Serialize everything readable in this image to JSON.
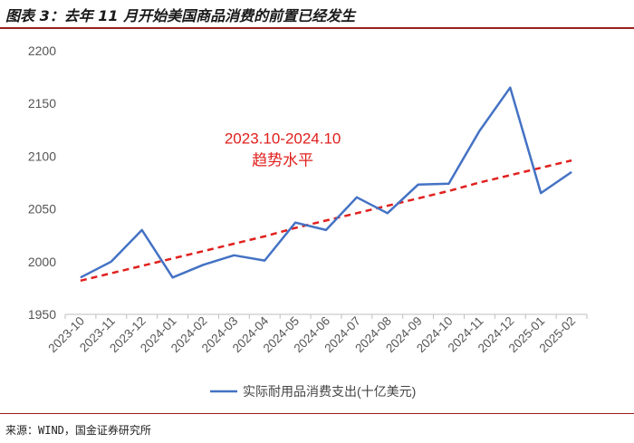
{
  "header": {
    "title": "图表 3：去年 11 月开始美国商品消费的前置已经发生"
  },
  "footer": {
    "source": "来源：WIND，国金证券研究所"
  },
  "chart_data": {
    "type": "line",
    "title": "",
    "xlabel": "",
    "ylabel": "",
    "ylim": [
      1950,
      2200
    ],
    "yticks": [
      1950,
      2000,
      2050,
      2100,
      2150,
      2200
    ],
    "grid": false,
    "legend_position": "bottom",
    "categories": [
      "2023-10",
      "2023-11",
      "2023-12",
      "2024-01",
      "2024-02",
      "2024-03",
      "2024-04",
      "2024-05",
      "2024-06",
      "2024-07",
      "2024-08",
      "2024-09",
      "2024-10",
      "2024-11",
      "2024-12",
      "2025-01",
      "2025-02"
    ],
    "series": [
      {
        "name": "实际耐用品消费支出(十亿美元)",
        "color": "#4472c4",
        "style": "solid",
        "values": [
          1985,
          2000,
          2030,
          1985,
          1997,
          2006,
          2001,
          2037,
          2030,
          2061,
          2046,
          2073,
          2074,
          2124,
          2165,
          2065,
          2085
        ]
      },
      {
        "color": "#e0201d",
        "style": "dashed",
        "values": [
          1982,
          1989,
          1996,
          2003,
          2010,
          2017,
          2024,
          2032,
          2039,
          2046,
          2053,
          2060,
          2067,
          2075,
          2082,
          2089,
          2096
        ]
      }
    ],
    "annotation": {
      "lines": [
        "2023.10-2024.10",
        "趋势水平"
      ],
      "color": "#e0201d",
      "x": "2024-05",
      "y": 2112
    }
  }
}
